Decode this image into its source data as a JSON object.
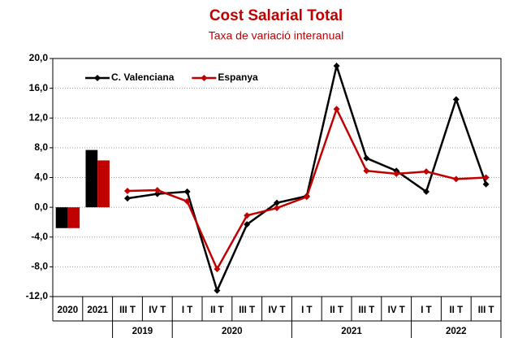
{
  "chart_data": {
    "type": "combo",
    "title": "Cost Salarial Total",
    "subtitle": "Taxa de variació interanual",
    "bar_categories": [
      "2020",
      "2021"
    ],
    "quarters": [
      {
        "year": "2019",
        "labels": [
          "III T",
          "IV T"
        ]
      },
      {
        "year": "2020",
        "labels": [
          "I T",
          "II T",
          "III T",
          "IV T"
        ]
      },
      {
        "year": "2021",
        "labels": [
          "I T",
          "II T",
          "III T",
          "IV T"
        ]
      },
      {
        "year": "2022",
        "labels": [
          "I T",
          "II T",
          "III T"
        ]
      }
    ],
    "series": [
      {
        "name": "C. Valenciana",
        "color": "#000000",
        "bar_values": [
          -2.8,
          7.7
        ],
        "values": [
          1.2,
          1.8,
          2.1,
          -11.2,
          -2.3,
          0.6,
          1.5,
          19.0,
          6.6,
          4.9,
          2.1,
          14.5,
          3.1
        ]
      },
      {
        "name": "Espanya",
        "color": "#c00000",
        "bar_values": [
          -2.8,
          6.3
        ],
        "values": [
          2.2,
          2.3,
          0.8,
          -8.3,
          -1.1,
          -0.1,
          1.4,
          13.2,
          4.9,
          4.5,
          4.8,
          3.8,
          4.0
        ]
      }
    ],
    "ylim": [
      -12,
      20
    ],
    "yticks": [
      {
        "value": -12,
        "label": "-12,0"
      },
      {
        "value": -8,
        "label": "-8,0"
      },
      {
        "value": -4,
        "label": "-4,0"
      },
      {
        "value": 0,
        "label": "0,0"
      },
      {
        "value": 4,
        "label": "4,0"
      },
      {
        "value": 8,
        "label": "8,0"
      },
      {
        "value": 12,
        "label": "12,0"
      },
      {
        "value": 16,
        "label": "16,0"
      },
      {
        "value": 20,
        "label": "20,0"
      }
    ],
    "grid": true,
    "legend": "top-left"
  }
}
